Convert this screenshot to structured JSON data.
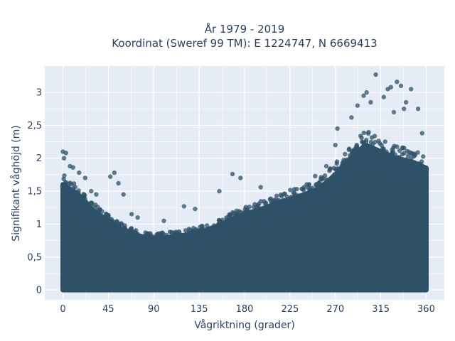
{
  "chart_data": {
    "type": "scatter",
    "title": "År 1979 - 2019",
    "subtitle": "Koordinat (Sweref 99 TM): E 1224747, N 6669413",
    "xlabel": "Vågriktning (grader)",
    "ylabel": "Signifikant våghöjd (m)",
    "xlim": [
      -18,
      378
    ],
    "ylim": [
      -0.15,
      3.4
    ],
    "x_ticks": [
      0,
      45,
      90,
      135,
      180,
      225,
      270,
      315,
      360
    ],
    "x_tick_labels": [
      "0",
      "45",
      "90",
      "135",
      "180",
      "225",
      "270",
      "315",
      "360"
    ],
    "y_ticks": [
      0,
      0.5,
      1,
      1.5,
      2,
      2.5,
      3
    ],
    "y_tick_labels": [
      "0",
      "0,5",
      "1",
      "1,5",
      "2",
      "2,5",
      "3"
    ],
    "grid": true,
    "marker_color": "#2f5168",
    "plot_background": "#e5ecf6",
    "series": [
      {
        "x_range": [
          0,
          360
        ],
        "dense_upper_envelope": [
          {
            "x": 0,
            "y": 1.6
          },
          {
            "x": 15,
            "y": 1.45
          },
          {
            "x": 30,
            "y": 1.2
          },
          {
            "x": 45,
            "y": 1.05
          },
          {
            "x": 60,
            "y": 0.9
          },
          {
            "x": 75,
            "y": 0.82
          },
          {
            "x": 90,
            "y": 0.78
          },
          {
            "x": 105,
            "y": 0.8
          },
          {
            "x": 120,
            "y": 0.83
          },
          {
            "x": 135,
            "y": 0.88
          },
          {
            "x": 150,
            "y": 0.95
          },
          {
            "x": 165,
            "y": 1.05
          },
          {
            "x": 180,
            "y": 1.15
          },
          {
            "x": 195,
            "y": 1.22
          },
          {
            "x": 210,
            "y": 1.3
          },
          {
            "x": 225,
            "y": 1.38
          },
          {
            "x": 240,
            "y": 1.45
          },
          {
            "x": 255,
            "y": 1.55
          },
          {
            "x": 270,
            "y": 1.75
          },
          {
            "x": 285,
            "y": 2.0
          },
          {
            "x": 300,
            "y": 2.2
          },
          {
            "x": 315,
            "y": 2.1
          },
          {
            "x": 330,
            "y": 2.0
          },
          {
            "x": 345,
            "y": 1.95
          },
          {
            "x": 360,
            "y": 1.85
          }
        ],
        "outliers": [
          {
            "x": 0,
            "y": 2.1
          },
          {
            "x": 3,
            "y": 2.08
          },
          {
            "x": 1,
            "y": 2.0
          },
          {
            "x": 7,
            "y": 1.88
          },
          {
            "x": 10,
            "y": 1.86
          },
          {
            "x": 16,
            "y": 1.78
          },
          {
            "x": 22,
            "y": 1.7
          },
          {
            "x": 28,
            "y": 1.5
          },
          {
            "x": 33,
            "y": 1.45
          },
          {
            "x": 47,
            "y": 1.72
          },
          {
            "x": 51,
            "y": 1.78
          },
          {
            "x": 55,
            "y": 1.62
          },
          {
            "x": 60,
            "y": 1.45
          },
          {
            "x": 68,
            "y": 1.15
          },
          {
            "x": 74,
            "y": 1.1
          },
          {
            "x": 100,
            "y": 1.05
          },
          {
            "x": 120,
            "y": 1.27
          },
          {
            "x": 131,
            "y": 1.23
          },
          {
            "x": 155,
            "y": 1.5
          },
          {
            "x": 168,
            "y": 1.76
          },
          {
            "x": 176,
            "y": 1.7
          },
          {
            "x": 196,
            "y": 1.56
          },
          {
            "x": 229,
            "y": 1.47
          },
          {
            "x": 243,
            "y": 1.55
          },
          {
            "x": 250,
            "y": 1.73
          },
          {
            "x": 261,
            "y": 1.88
          },
          {
            "x": 270,
            "y": 2.2
          },
          {
            "x": 272,
            "y": 2.45
          },
          {
            "x": 286,
            "y": 2.62
          },
          {
            "x": 292,
            "y": 2.8
          },
          {
            "x": 298,
            "y": 2.95
          },
          {
            "x": 301,
            "y": 3.0
          },
          {
            "x": 305,
            "y": 2.85
          },
          {
            "x": 310,
            "y": 3.27
          },
          {
            "x": 318,
            "y": 2.93
          },
          {
            "x": 322,
            "y": 3.05
          },
          {
            "x": 325,
            "y": 3.08
          },
          {
            "x": 331,
            "y": 3.16
          },
          {
            "x": 335,
            "y": 3.1
          },
          {
            "x": 340,
            "y": 2.85
          },
          {
            "x": 345,
            "y": 3.05
          },
          {
            "x": 352,
            "y": 2.75
          },
          {
            "x": 356,
            "y": 2.38
          },
          {
            "x": 338,
            "y": 2.75
          },
          {
            "x": 328,
            "y": 2.7
          },
          {
            "x": 343,
            "y": 1.9
          }
        ]
      }
    ]
  }
}
